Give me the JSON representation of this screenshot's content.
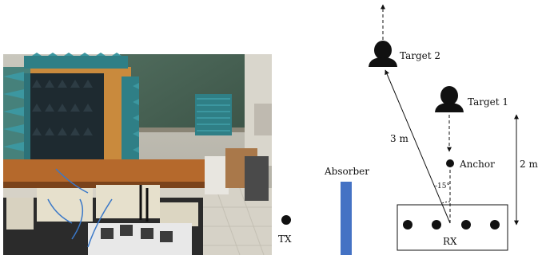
{
  "photo": {
    "description_kind": "lab-photo"
  },
  "labels": {
    "target2": "Target 2",
    "target1": "Target 1",
    "anchor": "Anchor",
    "absorber": "Absorber",
    "tx": "TX",
    "rx": "RX",
    "dist_3m": "3 m",
    "dist_2m": "2 m",
    "angle": "-15°"
  },
  "colors": {
    "absorber": "#4472c4",
    "ink": "#111111"
  }
}
